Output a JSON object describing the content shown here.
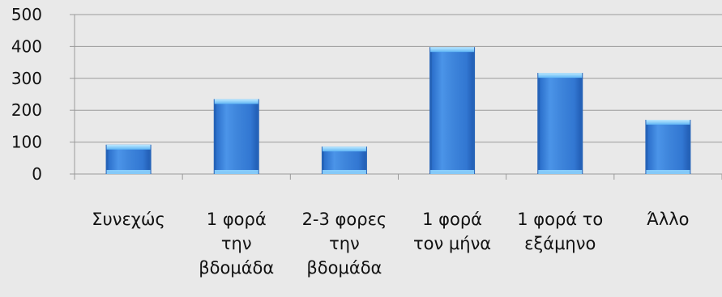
{
  "chart_data": {
    "type": "bar",
    "categories": [
      [
        "Συνεχώς"
      ],
      [
        "1 φορά",
        "την",
        "βδομάδα"
      ],
      [
        "2-3 φορες",
        "την",
        "βδομάδα"
      ],
      [
        "1 φορά",
        "τον μήνα"
      ],
      [
        "1 φορά το",
        "εξάμηνο"
      ],
      [
        "Άλλο"
      ]
    ],
    "values": [
      92,
      235,
      86,
      398,
      317,
      170
    ],
    "yticks": [
      "0",
      "100",
      "200",
      "300",
      "400",
      "500"
    ],
    "ylim": [
      0,
      500
    ],
    "grid": true,
    "colors": {
      "bar_fill": "#3e86dd",
      "bar_edge": "#8fd4ff",
      "bar_dark": "#2563b8",
      "grid": "#9a9a9a",
      "background": "#e9e9e9"
    }
  }
}
